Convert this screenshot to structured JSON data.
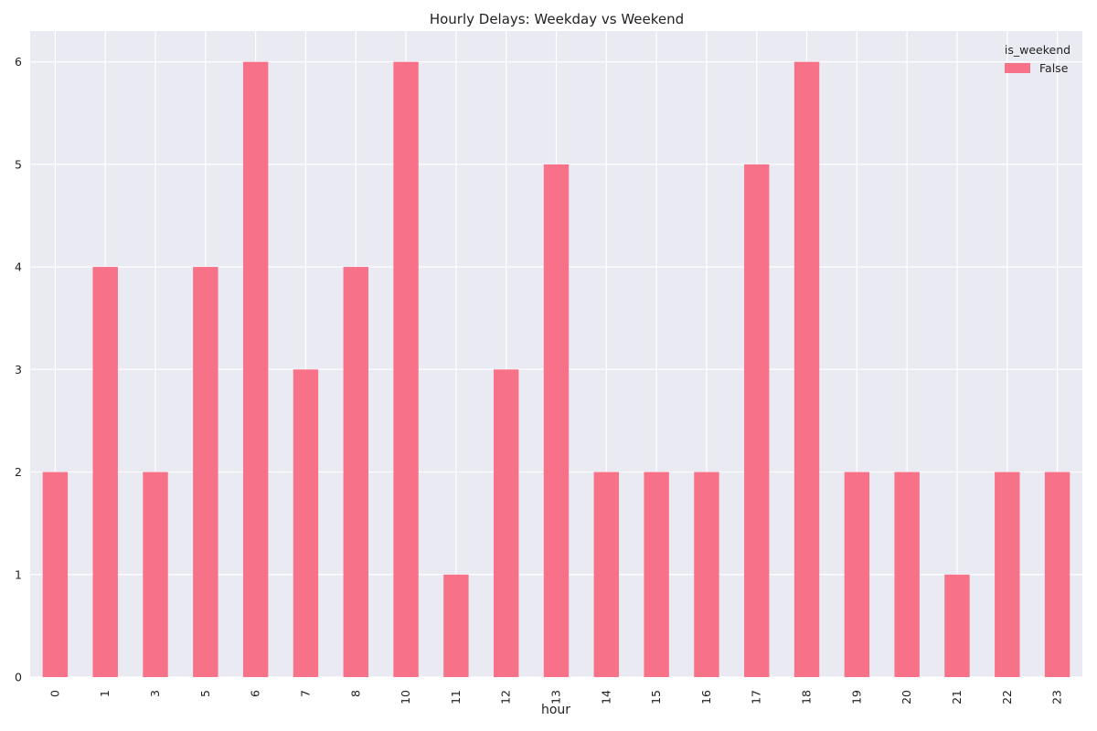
{
  "chart_data": {
    "type": "bar",
    "title": "Hourly Delays: Weekday vs Weekend",
    "xlabel": "hour",
    "ylabel": "",
    "categories": [
      "0",
      "1",
      "3",
      "5",
      "6",
      "7",
      "8",
      "10",
      "11",
      "12",
      "13",
      "14",
      "15",
      "16",
      "17",
      "18",
      "19",
      "20",
      "21",
      "22",
      "23"
    ],
    "series": [
      {
        "name": "False",
        "color": "#f77189",
        "values": [
          2,
          4,
          2,
          4,
          6,
          3,
          4,
          6,
          1,
          3,
          5,
          2,
          2,
          2,
          5,
          6,
          2,
          2,
          1,
          2,
          2
        ]
      }
    ],
    "ylim": [
      0,
      6.3
    ],
    "yticks": [
      0,
      1,
      2,
      3,
      4,
      5,
      6
    ],
    "grid": true,
    "legend": {
      "title": "is_weekend",
      "placement": "top-right"
    },
    "background_color": "#eaeaf2",
    "grid_color": "#ffffff"
  }
}
